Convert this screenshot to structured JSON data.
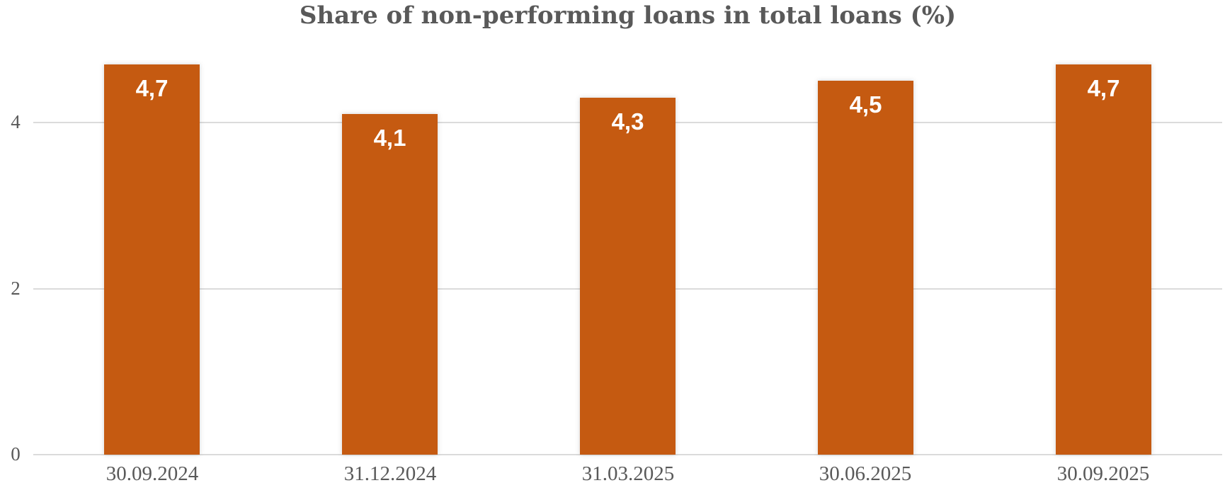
{
  "chart_data": {
    "type": "bar",
    "title": "Share of non-performing loans in total loans (%)",
    "categories": [
      "30.09.2024",
      "31.12.2024",
      "31.03.2025",
      "30.06.2025",
      "30.09.2025"
    ],
    "values": [
      4.7,
      4.1,
      4.3,
      4.5,
      4.7
    ],
    "value_labels": [
      "4,7",
      "4,1",
      "4,3",
      "4,5",
      "4,7"
    ],
    "decimal_separator": ",",
    "xlabel": "",
    "ylabel": "",
    "y_ticks": [
      0,
      2,
      4
    ],
    "ylim": [
      0,
      5
    ],
    "grid": "horizontal",
    "legend": "none",
    "colors": {
      "bar": "#C55A11",
      "value_label": "#FFFFFF",
      "gridline": "#DBDBDB",
      "axis_label": "#595959",
      "title": "#595959",
      "background": "#FFFFFF"
    }
  }
}
